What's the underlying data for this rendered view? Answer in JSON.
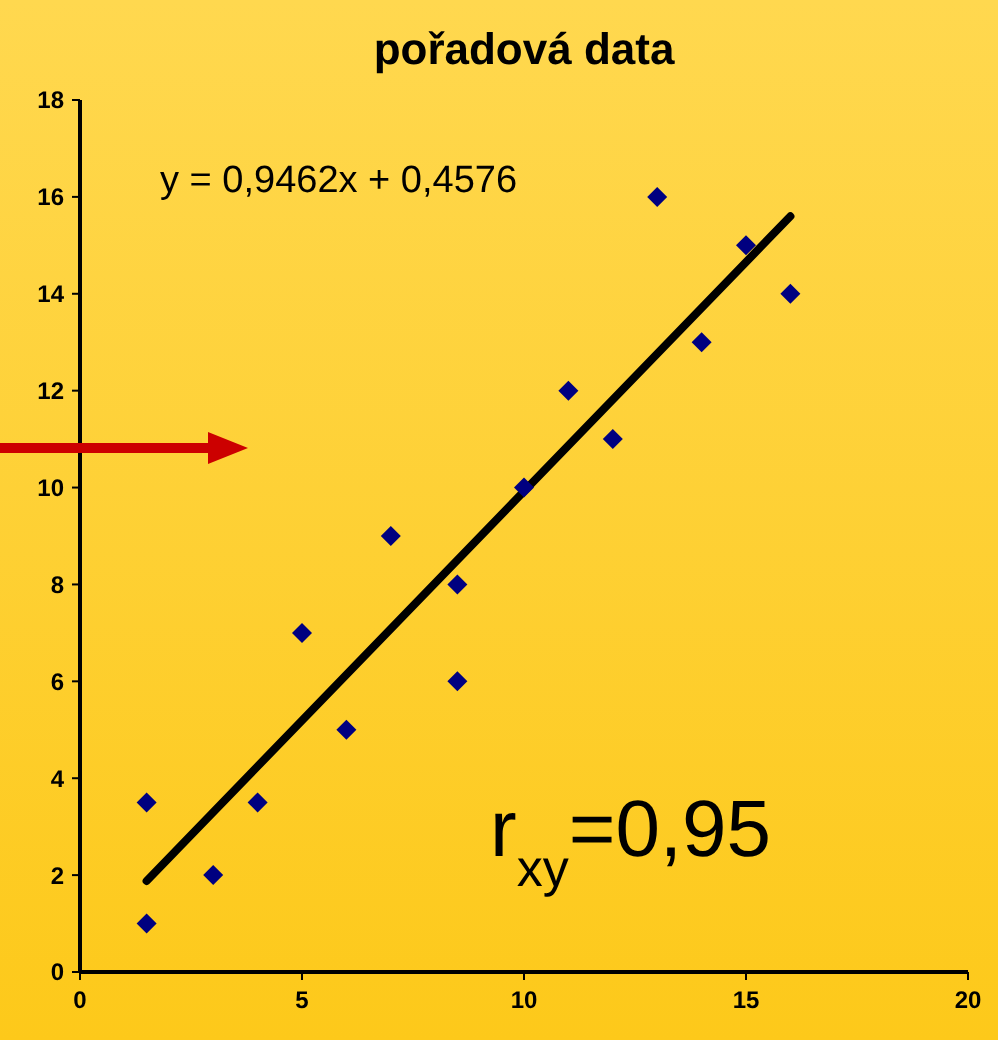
{
  "chart_data": {
    "type": "scatter",
    "title": "pořadová data",
    "xlim": [
      0,
      20
    ],
    "xticks": [
      0,
      5,
      10,
      15,
      20
    ],
    "ylim": [
      0,
      18
    ],
    "yticks": [
      0,
      2,
      4,
      6,
      8,
      10,
      12,
      14,
      16,
      18
    ],
    "grid": false,
    "series": [
      {
        "marker": "diamond",
        "color": "#000080",
        "x": [
          1.5,
          1.5,
          3,
          4,
          5,
          6,
          7,
          8.5,
          8.5,
          10,
          11,
          12,
          13,
          14,
          15,
          16
        ],
        "values": [
          3.5,
          1,
          2,
          3.5,
          7,
          5,
          9,
          8,
          6,
          10,
          12,
          11,
          16,
          13,
          15,
          14
        ]
      },
      {
        "type": "line",
        "color": "#000000",
        "x": [
          1.5,
          16
        ],
        "values": [
          1.88,
          15.6
        ],
        "line_style": "solid"
      }
    ],
    "annotations": [
      "y = 0,9462x + 0,4576",
      "r$_{xy}$=0,95"
    ]
  }
}
